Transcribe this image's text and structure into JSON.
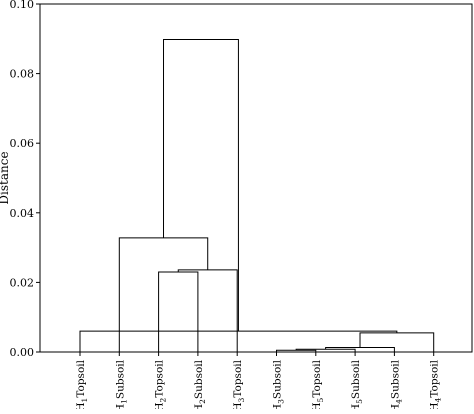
{
  "dendrogram": {
    "y_axis_title": "Distance",
    "y_range": [
      0,
      0.1
    ],
    "y_ticks": [
      "0.00",
      "0.02",
      "0.04",
      "0.06",
      "0.08",
      "0.10"
    ],
    "leaves": [
      {
        "prefix": "H",
        "sub": "1",
        "suffix": "Topsoil"
      },
      {
        "prefix": "H",
        "sub": "1",
        "suffix": "Subsoil"
      },
      {
        "prefix": "H",
        "sub": "2",
        "suffix": "Topsoil"
      },
      {
        "prefix": "H",
        "sub": "2",
        "suffix": "Subsoil"
      },
      {
        "prefix": "H",
        "sub": "3",
        "suffix": "Topsoil"
      },
      {
        "prefix": "H",
        "sub": "3",
        "suffix": "Subsoil"
      },
      {
        "prefix": "H",
        "sub": "5",
        "suffix": "Topsoil"
      },
      {
        "prefix": "H",
        "sub": "5",
        "suffix": "Subsoil"
      },
      {
        "prefix": "H",
        "sub": "4",
        "suffix": "Subsoil"
      },
      {
        "prefix": "H",
        "sub": "4",
        "suffix": "Topsoil"
      }
    ],
    "merges": [
      {
        "left": 5,
        "right": 6,
        "height": 0.0005
      },
      {
        "left": 10,
        "right": 7,
        "height": 0.0008
      },
      {
        "left": 11,
        "right": 8,
        "height": 0.0013
      },
      {
        "left": 12,
        "right": 9,
        "height": 0.0055
      },
      {
        "left": 2,
        "right": 3,
        "height": 0.023
      },
      {
        "left": 14,
        "right": 4,
        "height": 0.0236
      },
      {
        "left": 1,
        "right": 15,
        "height": 0.0328
      },
      {
        "left": 13,
        "right": 0,
        "height": 0.006
      },
      {
        "left": 16,
        "right": 17,
        "height": 0.0898
      }
    ]
  }
}
